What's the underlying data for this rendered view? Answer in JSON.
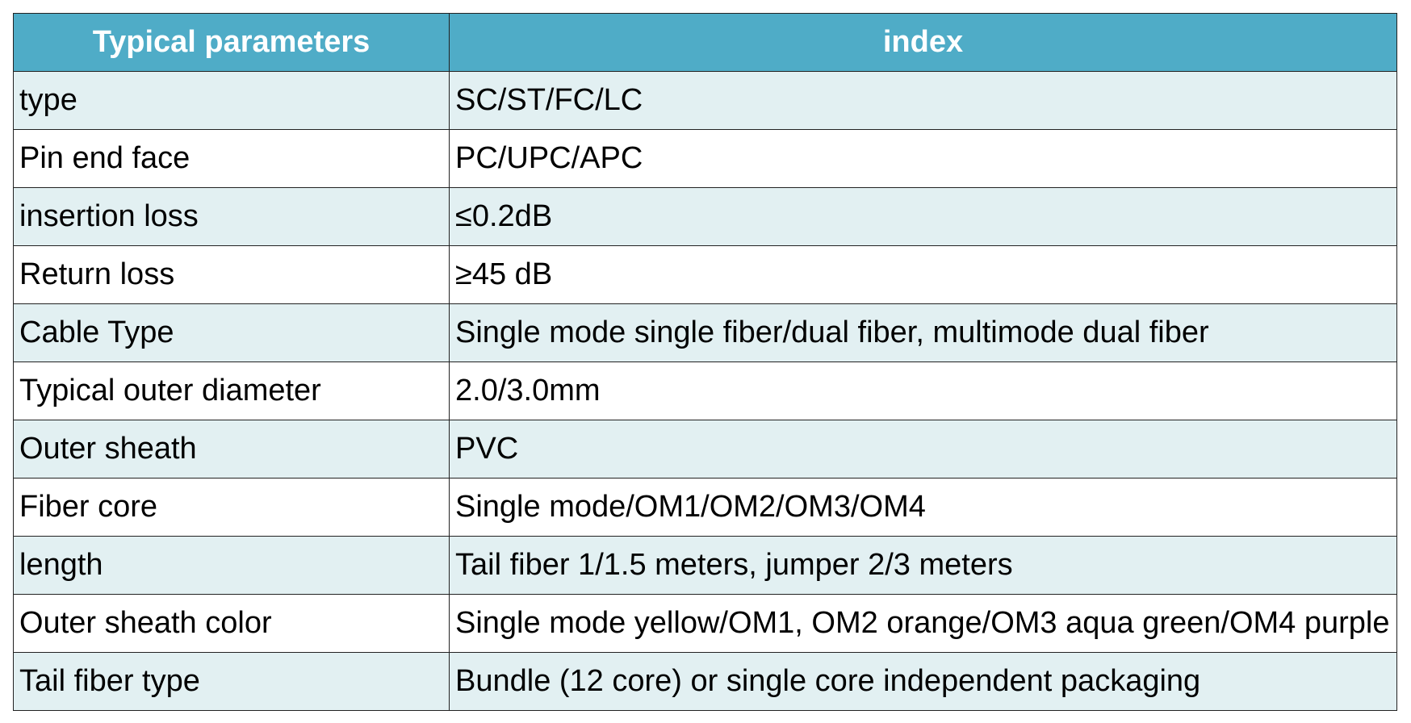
{
  "header": {
    "columns": [
      "Typical parameters",
      "index"
    ]
  },
  "table": {
    "rows": [
      [
        "type",
        "SC/ST/FC/LC"
      ],
      [
        "Pin end face",
        "PC/UPC/APC"
      ],
      [
        "insertion loss",
        "≤0.2dB"
      ],
      [
        "Return loss",
        "≥45 dB"
      ],
      [
        "Cable Type",
        "Single mode single fiber/dual fiber, multimode dual fiber"
      ],
      [
        "Typical outer diameter",
        "2.0/3.0mm"
      ],
      [
        "Outer sheath",
        "PVC"
      ],
      [
        "Fiber core",
        "Single mode/OM1/OM2/OM3/OM4"
      ],
      [
        "length",
        "Tail fiber 1/1.5 meters, jumper 2/3 meters"
      ],
      [
        "Outer sheath color",
        "Single mode yellow/OM1, OM2 orange/OM3 aqua green/OM4 purple"
      ],
      [
        "Tail fiber type",
        "Bundle (12 core) or single core independent packaging"
      ]
    ]
  }
}
